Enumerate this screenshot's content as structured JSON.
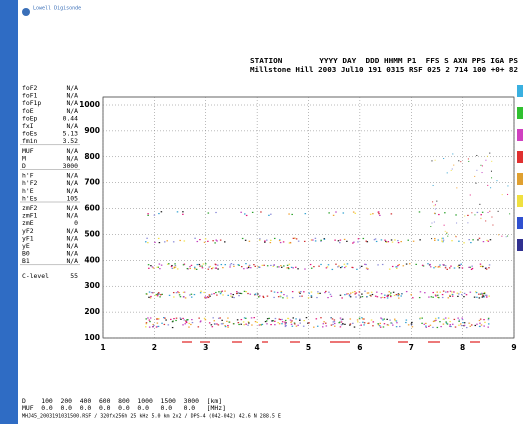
{
  "logo_text": "Lowell Digisonde",
  "header": {
    "labels": "STATION        YYYY DAY  DDD HHMM P1  FFS S AXN PPS IGA PS",
    "values": "Millstone Hill 2003 Jul10 191 0315 RSF 025 2 714 100 +0+ 82"
  },
  "params": [
    [
      [
        "foF2",
        "N/A"
      ],
      [
        "foF1",
        "N/A"
      ],
      [
        "foF1p",
        "N/A"
      ],
      [
        "foE",
        "N/A"
      ],
      [
        "foEp",
        "0.44"
      ],
      [
        "fxI",
        "N/A"
      ],
      [
        "foEs",
        "5.13"
      ],
      [
        "fmin",
        "3.52"
      ]
    ],
    [
      [
        "MUF",
        "N/A"
      ],
      [
        "M",
        "N/A"
      ],
      [
        "D",
        "3000"
      ]
    ],
    [
      [
        "h'F",
        "N/A"
      ],
      [
        "h'F2",
        "N/A"
      ],
      [
        "h'E",
        "N/A"
      ],
      [
        "h'Es",
        "105"
      ]
    ],
    [
      [
        "zmF2",
        "N/A"
      ],
      [
        "zmF1",
        "N/A"
      ],
      [
        "zmE",
        "0"
      ],
      [
        "yF2",
        "N/A"
      ],
      [
        "yF1",
        "N/A"
      ],
      [
        "yE",
        "N/A"
      ],
      [
        "B0",
        "N/A"
      ],
      [
        "B1",
        "N/A"
      ]
    ],
    [
      [
        "C-level",
        "55"
      ]
    ]
  ],
  "chart_data": {
    "type": "ionogram",
    "xlim": [
      1,
      9
    ],
    "ylim": [
      100,
      1000
    ],
    "xticks": [
      1,
      2,
      3,
      4,
      5,
      6,
      7,
      8,
      9
    ],
    "yticks": [
      100,
      200,
      300,
      400,
      500,
      600,
      700,
      800,
      900,
      1000
    ],
    "grid": true
  },
  "footer": {
    "line1": "D    100  200  400  600  800  1000  1500  3000  [km]",
    "line2": "MUF  0.0  0.0  0.0  0.0  0.0  0.0   0.0   0.0   [MHz]",
    "line3": "MHJ45_2003191031500.RSF / 320fx256h 25 kHz 5.0 km 2x2 / DPS-4 (042-042) 42.6 N 288.5 E"
  }
}
